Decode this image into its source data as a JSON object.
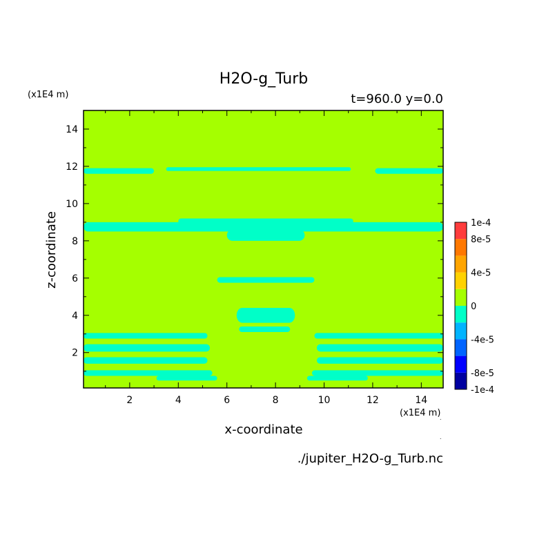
{
  "chart_data": {
    "type": "heatmap",
    "title": "H2O-g_Turb",
    "subtitle": "t=960.0 y=0.0",
    "xlabel": "x-coordinate",
    "ylabel": "z-coordinate",
    "x_unit": "(x1E4 m)",
    "y_unit": "(x1E4 m)",
    "xlim": [
      0.1,
      14.9
    ],
    "ylim": [
      0.1,
      15.0
    ],
    "x_ticks": [
      2,
      4,
      6,
      8,
      10,
      12,
      14
    ],
    "y_ticks": [
      2,
      4,
      6,
      8,
      10,
      12,
      14
    ],
    "grid": false,
    "background_value": 0,
    "background_color": "#a5ff00",
    "negative_band_color": "#00ffc8",
    "regions": [
      {
        "value": -2e-05,
        "x": [
          0.1,
          3.0
        ],
        "z": [
          11.6,
          11.9
        ]
      },
      {
        "value": -2e-05,
        "x": [
          3.5,
          11.1
        ],
        "z": [
          11.75,
          11.95
        ]
      },
      {
        "value": -2e-05,
        "x": [
          12.1,
          14.9
        ],
        "z": [
          11.6,
          11.9
        ]
      },
      {
        "value": -2e-05,
        "x": [
          0.1,
          14.9
        ],
        "z": [
          8.5,
          9.0
        ]
      },
      {
        "value": -2e-05,
        "x": [
          4.0,
          11.2
        ],
        "z": [
          8.9,
          9.2
        ]
      },
      {
        "value": -2e-05,
        "x": [
          6.0,
          9.2
        ],
        "z": [
          8.0,
          8.6
        ]
      },
      {
        "value": -2e-05,
        "x": [
          5.6,
          9.6
        ],
        "z": [
          5.75,
          6.05
        ]
      },
      {
        "value": -2e-05,
        "x": [
          6.4,
          8.8
        ],
        "z": [
          3.6,
          4.4
        ]
      },
      {
        "value": -2e-05,
        "x": [
          6.5,
          8.6
        ],
        "z": [
          3.1,
          3.4
        ]
      },
      {
        "value": -2e-05,
        "x": [
          0.1,
          5.2
        ],
        "z": [
          2.75,
          3.05
        ]
      },
      {
        "value": -2e-05,
        "x": [
          0.1,
          5.3
        ],
        "z": [
          2.05,
          2.45
        ]
      },
      {
        "value": -2e-05,
        "x": [
          0.1,
          5.2
        ],
        "z": [
          1.4,
          1.75
        ]
      },
      {
        "value": -2e-05,
        "x": [
          0.1,
          5.4
        ],
        "z": [
          0.75,
          1.05
        ]
      },
      {
        "value": -2e-05,
        "x": [
          3.1,
          5.6
        ],
        "z": [
          0.5,
          0.75
        ]
      },
      {
        "value": -2e-05,
        "x": [
          9.6,
          14.9
        ],
        "z": [
          2.75,
          3.05
        ]
      },
      {
        "value": -2e-05,
        "x": [
          9.7,
          14.9
        ],
        "z": [
          2.05,
          2.45
        ]
      },
      {
        "value": -2e-05,
        "x": [
          9.7,
          14.9
        ],
        "z": [
          1.4,
          1.75
        ]
      },
      {
        "value": -2e-05,
        "x": [
          9.5,
          14.9
        ],
        "z": [
          0.75,
          1.05
        ]
      },
      {
        "value": -2e-05,
        "x": [
          9.3,
          11.8
        ],
        "z": [
          0.5,
          0.75
        ]
      }
    ],
    "colorbar": {
      "levels": [
        -0.0001,
        -8e-05,
        -6e-05,
        -4e-05,
        -2e-05,
        0,
        2e-05,
        4e-05,
        6e-05,
        8e-05,
        0.0001
      ],
      "labels": [
        "-1e-4",
        "-8e-5",
        "-4e-5",
        "0",
        "4e-5",
        "8e-5",
        "1e-4"
      ],
      "label_values": [
        -0.0001,
        -8e-05,
        -4e-05,
        0,
        4e-05,
        8e-05,
        0.0001
      ],
      "colors": [
        "#0000a0",
        "#0000ff",
        "#0064ff",
        "#00b4ff",
        "#00ffc8",
        "#a5ff00",
        "#ffd200",
        "#ffa500",
        "#ff7800",
        "#ff3c3c"
      ]
    },
    "source_label": "./jupiter_H2O-g_Turb.nc"
  }
}
